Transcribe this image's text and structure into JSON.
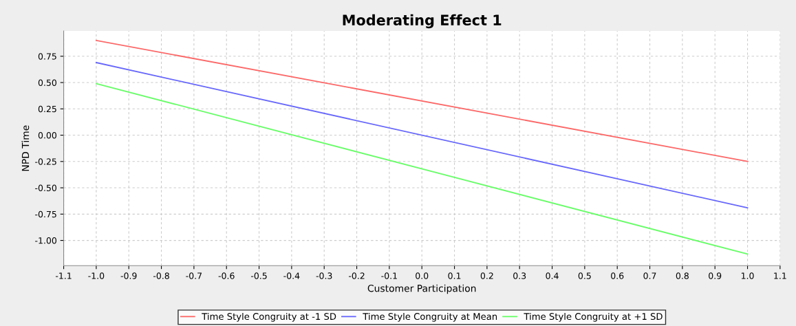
{
  "chart_data": {
    "type": "line",
    "title": "Moderating Effect 1",
    "xlabel": "Customer Participation",
    "ylabel": "NPD Time",
    "x": [
      -1.0,
      1.0
    ],
    "series": [
      {
        "name": "Time Style Congruity at -1 SD",
        "color": "#ff6666",
        "values": [
          0.9,
          -0.25
        ]
      },
      {
        "name": "Time Style Congruity at Mean",
        "color": "#6666ff",
        "values": [
          0.69,
          -0.69
        ]
      },
      {
        "name": "Time Style Congruity at +1 SD",
        "color": "#66ff66",
        "values": [
          0.49,
          -1.13
        ]
      }
    ],
    "xlim": [
      -1.1,
      1.1
    ],
    "ylim": [
      -1.24,
      0.99
    ],
    "xticks": [
      {
        "value": -1.1,
        "label": "-1.1"
      },
      {
        "value": -1.0,
        "label": "-1.0"
      },
      -0.9,
      -0.8,
      -0.7,
      -0.6,
      -0.5,
      -0.4,
      -0.3,
      -0.2,
      -0.1,
      {
        "value": 0,
        "label": "0.0"
      },
      0.1,
      0.2,
      0.3,
      0.4,
      0.5,
      0.6,
      0.7,
      0.8,
      0.9,
      {
        "value": 1.0,
        "label": "1.0"
      },
      1.1
    ],
    "yticks": [
      {
        "value": -1.0,
        "label": "-1.00"
      },
      {
        "value": -0.75,
        "label": "-0.75"
      },
      {
        "value": -0.5,
        "label": "-0.50"
      },
      {
        "value": -0.25,
        "label": "-0.25"
      },
      {
        "value": 0,
        "label": "0.00"
      },
      {
        "value": 0.25,
        "label": "0.25"
      },
      {
        "value": 0.5,
        "label": "0.50"
      },
      {
        "value": 0.75,
        "label": "0.75"
      }
    ],
    "grid": true,
    "legend": "bottom",
    "line_style": "solid"
  }
}
